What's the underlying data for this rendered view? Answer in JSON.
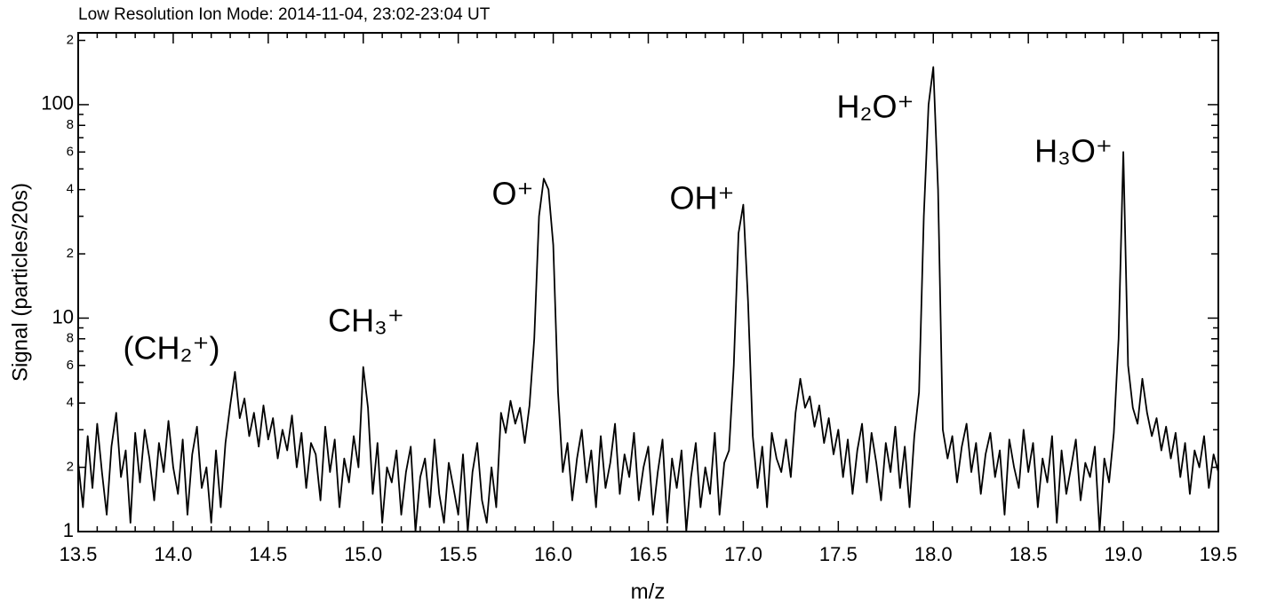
{
  "chart_data": {
    "type": "line",
    "title": "Low Resolution Ion Mode:  2014-11-04, 23:02-23:04 UT",
    "xlabel": "m/z",
    "ylabel": "Signal (particles/20s)",
    "color": "#000000",
    "yscale": "log",
    "xlim": [
      13.5,
      19.5
    ],
    "ylim": [
      1,
      217
    ],
    "xticks": [
      13.5,
      {
        "value": 14,
        "label": "14.0"
      },
      14.5,
      {
        "value": 15,
        "label": "15.0"
      },
      15.5,
      {
        "value": 16,
        "label": "16.0"
      },
      16.5,
      {
        "value": 17,
        "label": "17.0"
      },
      17.5,
      {
        "value": 18,
        "label": "18.0"
      },
      18.5,
      {
        "value": 19,
        "label": "19.0"
      },
      19.5
    ],
    "xminorticks": [
      13.6,
      13.7,
      13.8,
      13.9,
      14.1,
      14.2,
      14.3,
      14.4,
      14.6,
      14.7,
      14.8,
      14.9,
      15.1,
      15.2,
      15.3,
      15.4,
      15.6,
      15.7,
      15.8,
      15.9,
      16.1,
      16.2,
      16.3,
      16.4,
      16.6,
      16.7,
      16.8,
      16.9,
      17.1,
      17.2,
      17.3,
      17.4,
      17.6,
      17.7,
      17.8,
      17.9,
      18.1,
      18.2,
      18.3,
      18.4,
      18.6,
      18.7,
      18.8,
      18.9,
      19.1,
      19.2,
      19.3,
      19.4
    ],
    "yticks": [
      1,
      2,
      4,
      6,
      8,
      10,
      {
        "value": 20,
        "label": "2"
      },
      {
        "value": 40,
        "label": "4"
      },
      {
        "value": 60,
        "label": "6"
      },
      {
        "value": 80,
        "label": "8"
      },
      100,
      {
        "value": 200,
        "label": "2"
      }
    ],
    "yminorticks": [
      3,
      5,
      7,
      9,
      30,
      50,
      70,
      90
    ],
    "annotations": [
      {
        "text": "(CH₂⁺)"
      },
      {
        "text": "CH₃⁺"
      },
      {
        "text": "O⁺"
      },
      {
        "text": "OH⁺"
      },
      {
        "text": "H₂O⁺"
      },
      {
        "text": "H₃O⁺"
      }
    ],
    "x": [
      13.5,
      13.525,
      13.55,
      13.575,
      13.6,
      13.625,
      13.65,
      13.675,
      13.7,
      13.725,
      13.75,
      13.775,
      13.8,
      13.825,
      13.85,
      13.875,
      13.9,
      13.925,
      13.95,
      13.975,
      14,
      14.025,
      14.05,
      14.075,
      14.1,
      14.125,
      14.15,
      14.175,
      14.2,
      14.225,
      14.25,
      14.275,
      14.3,
      14.325,
      14.35,
      14.375,
      14.4,
      14.425,
      14.45,
      14.475,
      14.5,
      14.525,
      14.55,
      14.575,
      14.6,
      14.625,
      14.65,
      14.675,
      14.7,
      14.725,
      14.75,
      14.775,
      14.8,
      14.825,
      14.85,
      14.875,
      14.9,
      14.925,
      14.95,
      14.975,
      15,
      15.025,
      15.05,
      15.075,
      15.1,
      15.125,
      15.15,
      15.175,
      15.2,
      15.225,
      15.25,
      15.275,
      15.3,
      15.325,
      15.35,
      15.375,
      15.4,
      15.425,
      15.45,
      15.475,
      15.5,
      15.525,
      15.55,
      15.575,
      15.6,
      15.625,
      15.65,
      15.675,
      15.7,
      15.725,
      15.75,
      15.775,
      15.8,
      15.825,
      15.85,
      15.875,
      15.9,
      15.925,
      15.95,
      15.975,
      16,
      16.025,
      16.05,
      16.075,
      16.1,
      16.125,
      16.15,
      16.175,
      16.2,
      16.225,
      16.25,
      16.275,
      16.3,
      16.325,
      16.35,
      16.375,
      16.4,
      16.425,
      16.45,
      16.475,
      16.5,
      16.525,
      16.55,
      16.575,
      16.6,
      16.625,
      16.65,
      16.675,
      16.7,
      16.725,
      16.75,
      16.775,
      16.8,
      16.825,
      16.85,
      16.875,
      16.9,
      16.925,
      16.95,
      16.975,
      17,
      17.025,
      17.05,
      17.075,
      17.1,
      17.125,
      17.15,
      17.175,
      17.2,
      17.225,
      17.25,
      17.275,
      17.3,
      17.325,
      17.35,
      17.375,
      17.4,
      17.425,
      17.45,
      17.475,
      17.5,
      17.525,
      17.55,
      17.575,
      17.6,
      17.625,
      17.65,
      17.675,
      17.7,
      17.725,
      17.75,
      17.775,
      17.8,
      17.825,
      17.85,
      17.875,
      17.9,
      17.925,
      17.95,
      17.975,
      18,
      18.025,
      18.05,
      18.075,
      18.1,
      18.125,
      18.15,
      18.175,
      18.2,
      18.225,
      18.25,
      18.275,
      18.3,
      18.325,
      18.35,
      18.375,
      18.4,
      18.425,
      18.45,
      18.475,
      18.5,
      18.525,
      18.55,
      18.575,
      18.6,
      18.625,
      18.65,
      18.675,
      18.7,
      18.725,
      18.75,
      18.775,
      18.8,
      18.825,
      18.85,
      18.875,
      18.9,
      18.925,
      18.95,
      18.975,
      19,
      19.025,
      19.05,
      19.075,
      19.1,
      19.125,
      19.15,
      19.175,
      19.2,
      19.225,
      19.25,
      19.275,
      19.3,
      19.325,
      19.35,
      19.375,
      19.4,
      19.425,
      19.45,
      19.475,
      19.5
    ],
    "values": [
      2.1,
      1.3,
      2.8,
      1.6,
      3.2,
      1.9,
      1.2,
      2.5,
      3.6,
      1.8,
      2.4,
      1.1,
      2.9,
      1.7,
      3.0,
      2.2,
      1.4,
      2.6,
      1.9,
      3.3,
      2.0,
      1.5,
      2.7,
      1.2,
      2.3,
      3.1,
      1.6,
      2.0,
      1.1,
      2.4,
      1.3,
      2.6,
      3.9,
      5.6,
      3.4,
      4.2,
      2.8,
      3.6,
      2.5,
      3.9,
      2.7,
      3.4,
      2.2,
      3.0,
      2.4,
      3.5,
      2.0,
      2.9,
      1.6,
      2.6,
      2.3,
      1.4,
      3.1,
      1.9,
      2.7,
      1.3,
      2.2,
      1.7,
      2.8,
      2.0,
      5.9,
      3.8,
      1.5,
      2.6,
      1.1,
      2.0,
      1.7,
      2.4,
      1.2,
      1.9,
      2.5,
      1.0,
      1.8,
      2.2,
      1.3,
      2.7,
      1.5,
      1.1,
      2.1,
      1.6,
      1.2,
      2.3,
      1.0,
      1.9,
      2.6,
      1.4,
      1.1,
      2.0,
      1.3,
      3.6,
      2.9,
      4.1,
      3.2,
      3.8,
      2.6,
      3.9,
      8.0,
      30,
      45,
      40,
      22,
      4.5,
      1.9,
      2.6,
      1.4,
      2.2,
      3.0,
      1.7,
      2.4,
      1.3,
      2.8,
      1.6,
      2.1,
      3.2,
      1.5,
      2.3,
      1.8,
      2.9,
      1.4,
      2.0,
      2.5,
      1.2,
      1.9,
      2.7,
      1.1,
      2.2,
      1.6,
      2.4,
      1.0,
      1.8,
      2.6,
      1.3,
      2.0,
      1.5,
      2.9,
      1.2,
      2.1,
      2.4,
      6.0,
      25,
      34,
      12,
      2.8,
      1.6,
      2.5,
      1.3,
      2.9,
      2.2,
      1.9,
      2.7,
      1.8,
      3.6,
      5.2,
      3.8,
      4.3,
      3.1,
      3.9,
      2.6,
      3.4,
      2.3,
      3.0,
      1.8,
      2.7,
      1.5,
      2.4,
      3.2,
      1.7,
      2.9,
      2.1,
      1.4,
      2.6,
      1.9,
      3.1,
      1.6,
      2.5,
      1.3,
      2.8,
      4.5,
      30,
      100,
      150,
      40,
      3.0,
      2.2,
      2.8,
      1.7,
      2.5,
      3.2,
      1.9,
      2.6,
      1.5,
      2.3,
      2.9,
      1.8,
      2.4,
      1.2,
      2.7,
      2.0,
      1.6,
      3.0,
      1.9,
      2.6,
      1.3,
      2.2,
      1.7,
      2.8,
      1.1,
      2.4,
      1.5,
      2.0,
      2.7,
      1.4,
      2.1,
      1.8,
      2.5,
      1.0,
      2.2,
      1.7,
      2.9,
      8.0,
      60,
      6.0,
      3.8,
      3.2,
      5.2,
      3.6,
      2.8,
      3.4,
      2.4,
      3.1,
      2.2,
      2.9,
      1.8,
      2.6,
      1.5,
      2.4,
      2.0,
      2.8,
      1.6,
      2.3,
      1.9
    ]
  }
}
